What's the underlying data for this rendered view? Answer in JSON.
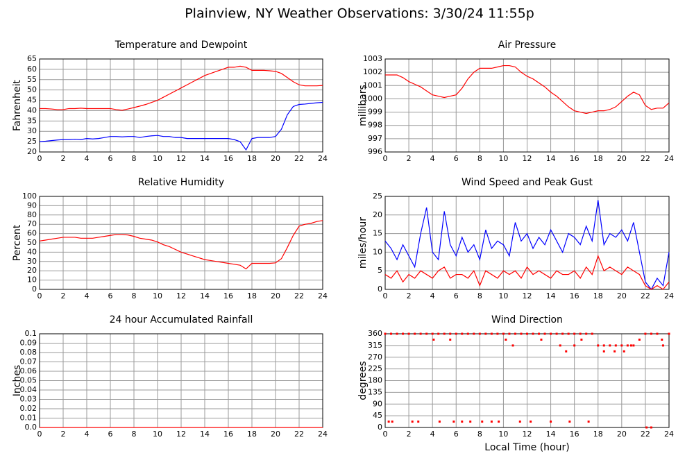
{
  "title": "Plainview, NY Weather Observations: 3/30/24 11:55p",
  "chart_data": [
    {
      "type": "line",
      "title": "Temperature and Dewpoint",
      "ylabel": "Fahrenheit",
      "x": [
        0,
        0.5,
        1,
        1.5,
        2,
        2.5,
        3,
        3.5,
        4,
        4.5,
        5,
        5.5,
        6,
        6.5,
        7,
        7.5,
        8,
        8.5,
        9,
        9.5,
        10,
        10.5,
        11,
        11.5,
        12,
        12.5,
        13,
        13.5,
        14,
        14.5,
        15,
        15.5,
        16,
        16.5,
        17,
        17.5,
        18,
        18.5,
        19,
        19.5,
        20,
        20.5,
        21,
        21.5,
        22,
        22.5,
        23,
        23.5,
        24
      ],
      "series": [
        {
          "color": "#ff0000",
          "values": [
            41,
            41,
            40.8,
            40.5,
            40.5,
            41,
            41,
            41.2,
            41,
            41,
            41,
            41,
            41,
            40.5,
            40.2,
            40.8,
            41.5,
            42.2,
            43,
            44,
            45,
            46.5,
            48,
            49.5,
            51,
            52.5,
            54,
            55.5,
            57,
            58,
            59,
            60,
            61,
            61,
            61.5,
            61,
            59.5,
            59.5,
            59.5,
            59.3,
            59,
            58,
            56,
            54,
            52.5,
            52,
            52,
            52,
            52.2
          ]
        },
        {
          "color": "#0000ff",
          "values": [
            25,
            25.2,
            25.5,
            25.8,
            26,
            26,
            26.2,
            26,
            26.5,
            26.3,
            26.5,
            27,
            27.5,
            27.5,
            27.3,
            27.5,
            27.5,
            27,
            27.5,
            27.8,
            28,
            27.5,
            27.5,
            27,
            27,
            26.5,
            26.5,
            26.5,
            26.5,
            26.5,
            26.5,
            26.5,
            26.5,
            26,
            25,
            21,
            26.5,
            27,
            27,
            27,
            27.5,
            31,
            38,
            42,
            43,
            43.2,
            43.5,
            43.8,
            44
          ]
        }
      ],
      "xlim": [
        0,
        24
      ],
      "xticks": [
        0,
        2,
        4,
        6,
        8,
        10,
        12,
        14,
        16,
        18,
        20,
        22,
        24
      ],
      "ylim": [
        20,
        65
      ],
      "yticks": [
        20,
        25,
        30,
        35,
        40,
        45,
        50,
        55,
        60,
        65
      ],
      "grid": true
    },
    {
      "type": "line",
      "title": "Air Pressure",
      "ylabel": "millibars",
      "x": [
        0,
        0.5,
        1,
        1.5,
        2,
        2.5,
        3,
        3.5,
        4,
        4.5,
        5,
        5.5,
        6,
        6.5,
        7,
        7.5,
        8,
        8.5,
        9,
        9.5,
        10,
        10.5,
        11,
        11.5,
        12,
        12.5,
        13,
        13.5,
        14,
        14.5,
        15,
        15.5,
        16,
        16.5,
        17,
        17.5,
        18,
        18.5,
        19,
        19.5,
        20,
        20.5,
        21,
        21.5,
        22,
        22.5,
        23,
        23.5,
        24
      ],
      "series": [
        {
          "color": "#ff0000",
          "values": [
            1001.8,
            1001.8,
            1001.8,
            1001.6,
            1001.3,
            1001.1,
            1000.9,
            1000.6,
            1000.3,
            1000.2,
            1000.1,
            1000.2,
            1000.3,
            1000.8,
            1001.5,
            1002,
            1002.3,
            1002.3,
            1002.3,
            1002.4,
            1002.5,
            1002.5,
            1002.4,
            1002,
            1001.7,
            1001.5,
            1001.2,
            1000.9,
            1000.5,
            1000.2,
            999.8,
            999.4,
            999.1,
            999,
            998.9,
            999,
            999.1,
            999.1,
            999.2,
            999.4,
            999.8,
            1000.2,
            1000.5,
            1000.3,
            999.5,
            999.2,
            999.3,
            999.3,
            999.7
          ]
        }
      ],
      "xlim": [
        0,
        24
      ],
      "xticks": [
        0,
        2,
        4,
        6,
        8,
        10,
        12,
        14,
        16,
        18,
        20,
        22,
        24
      ],
      "ylim": [
        996,
        1003
      ],
      "yticks": [
        996,
        997,
        998,
        999,
        1000,
        1001,
        1002,
        1003
      ],
      "grid": true
    },
    {
      "type": "line",
      "title": "Relative Humidity",
      "ylabel": "Percent",
      "x": [
        0,
        0.5,
        1,
        1.5,
        2,
        2.5,
        3,
        3.5,
        4,
        4.5,
        5,
        5.5,
        6,
        6.5,
        7,
        7.5,
        8,
        8.5,
        9,
        9.5,
        10,
        10.5,
        11,
        11.5,
        12,
        12.5,
        13,
        13.5,
        14,
        14.5,
        15,
        15.5,
        16,
        16.5,
        17,
        17.5,
        18,
        18.5,
        19,
        19.5,
        20,
        20.5,
        21,
        21.5,
        22,
        22.5,
        23,
        23.5,
        24
      ],
      "series": [
        {
          "color": "#ff0000",
          "values": [
            52,
            53,
            54,
            55,
            56,
            56,
            56,
            55,
            55,
            55,
            56,
            57,
            58,
            59,
            59,
            58.5,
            57,
            55,
            54,
            53,
            51,
            48,
            46,
            43,
            40,
            38,
            36,
            34,
            32,
            31,
            30,
            29,
            28,
            27,
            26,
            22,
            28,
            28,
            28,
            28,
            28.5,
            33,
            45,
            58,
            68,
            70,
            71,
            73,
            74
          ]
        }
      ],
      "xlim": [
        0,
        24
      ],
      "xticks": [
        0,
        2,
        4,
        6,
        8,
        10,
        12,
        14,
        16,
        18,
        20,
        22,
        24
      ],
      "ylim": [
        0,
        100
      ],
      "yticks": [
        0,
        10,
        20,
        30,
        40,
        50,
        60,
        70,
        80,
        90,
        100
      ],
      "grid": true
    },
    {
      "type": "line",
      "title": "Wind Speed and Peak Gust",
      "ylabel": "miles/hour",
      "x": [
        0,
        0.5,
        1,
        1.5,
        2,
        2.5,
        3,
        3.5,
        4,
        4.5,
        5,
        5.5,
        6,
        6.5,
        7,
        7.5,
        8,
        8.5,
        9,
        9.5,
        10,
        10.5,
        11,
        11.5,
        12,
        12.5,
        13,
        13.5,
        14,
        14.5,
        15,
        15.5,
        16,
        16.5,
        17,
        17.5,
        18,
        18.5,
        19,
        19.5,
        20,
        20.5,
        21,
        21.5,
        22,
        22.5,
        23,
        23.5,
        24
      ],
      "series": [
        {
          "color": "#0000ff",
          "values": [
            13,
            11,
            8,
            12,
            9,
            6,
            15,
            22,
            10,
            8,
            21,
            12,
            9,
            14,
            10,
            12,
            8,
            16,
            11,
            13,
            12,
            9,
            18,
            13,
            15,
            11,
            14,
            12,
            16,
            13,
            10,
            15,
            14,
            12,
            17,
            13,
            24,
            12,
            15,
            14,
            16,
            13,
            18,
            10,
            2,
            0,
            3,
            1,
            10
          ]
        },
        {
          "color": "#ff0000",
          "values": [
            4,
            3,
            5,
            2,
            4,
            3,
            5,
            4,
            3,
            5,
            6,
            3,
            4,
            4,
            3,
            5,
            1,
            5,
            4,
            3,
            5,
            4,
            5,
            3,
            6,
            4,
            5,
            4,
            3,
            5,
            4,
            4,
            5,
            3,
            6,
            4,
            9,
            5,
            6,
            5,
            4,
            6,
            5,
            4,
            1,
            0,
            1,
            0,
            2
          ]
        }
      ],
      "xlim": [
        0,
        24
      ],
      "xticks": [
        0,
        2,
        4,
        6,
        8,
        10,
        12,
        14,
        16,
        18,
        20,
        22,
        24
      ],
      "ylim": [
        0,
        25
      ],
      "yticks": [
        0,
        5,
        10,
        15,
        20,
        25
      ],
      "grid": true
    },
    {
      "type": "line",
      "title": "24 hour Accumulated Rainfall",
      "ylabel": "Inches",
      "x": [
        0,
        24
      ],
      "series": [
        {
          "color": "#ff0000",
          "values": [
            0,
            0
          ]
        }
      ],
      "xlim": [
        0,
        24
      ],
      "xticks": [
        0,
        2,
        4,
        6,
        8,
        10,
        12,
        14,
        16,
        18,
        20,
        22,
        24
      ],
      "ylim": [
        0,
        0.1
      ],
      "yticks": [
        {
          "value": 0,
          "label": "0.0"
        },
        0.01,
        0.02,
        0.03,
        0.04,
        0.05,
        0.06,
        0.07,
        0.08,
        0.09,
        0.1
      ],
      "grid": true
    },
    {
      "type": "scatter",
      "title": "Wind Direction",
      "ylabel": "degrees",
      "xlabel": "Local Time (hour)",
      "x": [
        0,
        0.5,
        1,
        1.5,
        2,
        2.5,
        3,
        3.5,
        4,
        4.5,
        5,
        5.5,
        6,
        6.5,
        7,
        7.5,
        8,
        8.5,
        9,
        9.5,
        10,
        10.5,
        11,
        11.5,
        12,
        12.5,
        13,
        13.5,
        14,
        14.5,
        15,
        15.5,
        16,
        16.5,
        17,
        17.5,
        18,
        18.5,
        19,
        19.5,
        20,
        20.5,
        21,
        21.5,
        22,
        22.5,
        23,
        23.5,
        24,
        0.3,
        0.6,
        2.3,
        2.8,
        4.1,
        4.6,
        5.5,
        5.8,
        6.5,
        7.2,
        8.2,
        9.0,
        9.6,
        10.2,
        10.8,
        11.4,
        12.3,
        13.2,
        14,
        14.8,
        15.3,
        15.6,
        16,
        16.6,
        17.2,
        18.5,
        19.4,
        20.2,
        20.8,
        22.1,
        22.5,
        23.4
      ],
      "color": "#ff0000",
      "values": [
        360,
        360,
        360,
        360,
        360,
        360,
        360,
        360,
        360,
        360,
        360,
        360,
        360,
        360,
        360,
        360,
        360,
        360,
        360,
        360,
        360,
        360,
        360,
        360,
        360,
        360,
        360,
        360,
        360,
        360,
        360,
        360,
        360,
        360,
        360,
        360,
        315,
        315,
        315,
        315,
        315,
        315,
        315,
        337.5,
        360,
        360,
        360,
        315,
        360,
        22.5,
        22.5,
        22.5,
        22.5,
        337.5,
        22.5,
        337.5,
        22.5,
        22.5,
        22.5,
        22.5,
        22.5,
        22.5,
        337.5,
        315,
        22.5,
        22.5,
        337.5,
        22.5,
        315,
        292.5,
        22.5,
        315,
        337.5,
        22.5,
        292.5,
        292.5,
        292.5,
        315,
        0,
        0,
        337.5
      ],
      "xlim": [
        0,
        24
      ],
      "xticks": [
        0,
        2,
        4,
        6,
        8,
        10,
        12,
        14,
        16,
        18,
        20,
        22,
        24
      ],
      "ylim": [
        0,
        360
      ],
      "yticks": [
        0,
        45,
        90,
        135,
        180,
        225,
        270,
        315,
        360
      ],
      "grid": true
    }
  ]
}
